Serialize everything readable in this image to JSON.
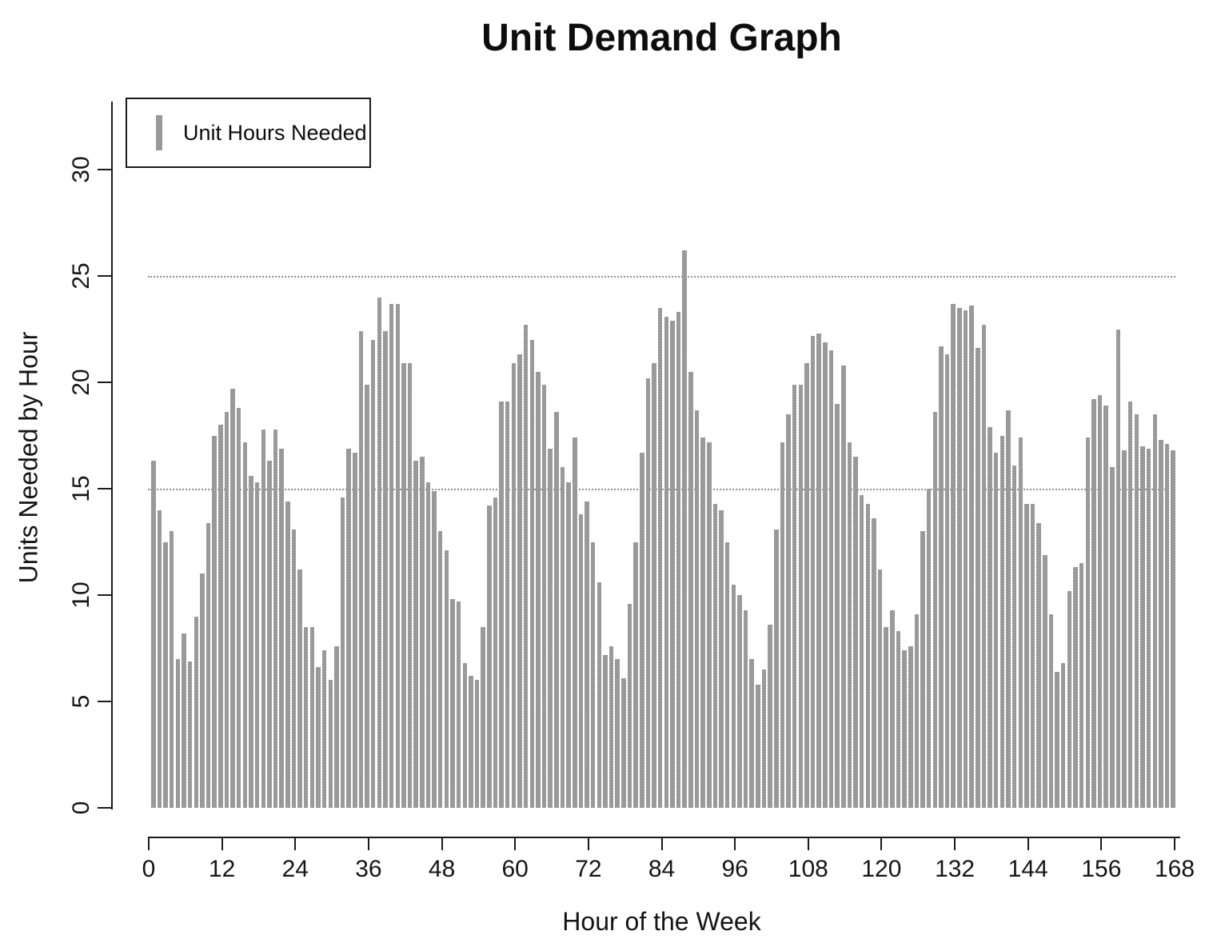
{
  "chart_data": {
    "type": "bar",
    "title": "Unit Demand Graph",
    "xlabel": "Hour of the Week",
    "ylabel": "Units Needed by Hour",
    "legend": "Unit Hours Needed",
    "x_ticks": [
      0,
      12,
      24,
      36,
      48,
      60,
      72,
      84,
      96,
      108,
      120,
      132,
      144,
      156,
      168
    ],
    "y_ticks": [
      0,
      5,
      10,
      15,
      20,
      25,
      30
    ],
    "ylim": [
      0,
      33
    ],
    "xlim": [
      0,
      168
    ],
    "reference_lines": [
      15,
      25
    ],
    "grid": "off",
    "legend_position": "top-left",
    "x_unit": "hour of the week (1-168)",
    "values": [
      16.3,
      14.0,
      12.5,
      13.0,
      7.0,
      8.2,
      6.9,
      9.0,
      11.0,
      13.4,
      17.5,
      18.0,
      18.6,
      19.7,
      18.8,
      17.2,
      15.6,
      15.3,
      17.8,
      16.3,
      17.8,
      16.9,
      14.4,
      13.1,
      11.2,
      8.5,
      8.5,
      6.6,
      7.4,
      6.0,
      7.6,
      14.6,
      16.9,
      16.7,
      22.4,
      19.9,
      22.0,
      24.0,
      22.4,
      23.7,
      23.7,
      20.9,
      20.9,
      16.3,
      16.5,
      15.3,
      14.9,
      13.0,
      12.1,
      9.8,
      9.7,
      6.8,
      6.2,
      6.0,
      8.5,
      14.2,
      14.6,
      19.1,
      19.1,
      20.9,
      21.3,
      22.7,
      22.0,
      20.5,
      19.9,
      16.9,
      18.6,
      16.0,
      15.3,
      17.4,
      13.8,
      14.4,
      12.5,
      10.6,
      7.2,
      7.6,
      7.0,
      6.1,
      9.6,
      12.5,
      16.7,
      20.2,
      20.9,
      23.5,
      23.1,
      22.9,
      23.3,
      26.2,
      20.5,
      18.7,
      17.4,
      17.2,
      14.3,
      14.0,
      12.5,
      10.5,
      10.0,
      9.3,
      7.0,
      5.8,
      6.5,
      8.6,
      13.1,
      17.2,
      18.5,
      19.9,
      19.9,
      20.9,
      22.2,
      22.3,
      21.9,
      21.5,
      19.0,
      20.8,
      17.2,
      16.5,
      14.7,
      14.3,
      13.6,
      11.2,
      8.5,
      9.3,
      8.3,
      7.4,
      7.6,
      9.1,
      13.0,
      15.0,
      18.6,
      21.7,
      21.3,
      23.7,
      23.5,
      23.4,
      23.6,
      21.6,
      22.7,
      17.9,
      16.7,
      17.5,
      18.7,
      16.1,
      17.4,
      14.3,
      14.3,
      13.4,
      11.9,
      9.1,
      6.4,
      6.8,
      10.2,
      11.3,
      11.5,
      17.4,
      19.2,
      19.4,
      18.9,
      16.0,
      22.5,
      16.8,
      19.1,
      18.5,
      17.0,
      16.9,
      18.5,
      17.3,
      17.1,
      16.8
    ],
    "colors": {
      "bar_dither_dark": "#6a6a6a",
      "bar_dither_light": "#c9c9c9",
      "axis": "#1a1a1a",
      "reference_line": "#8f8f8f",
      "background": "#ffffff"
    }
  }
}
